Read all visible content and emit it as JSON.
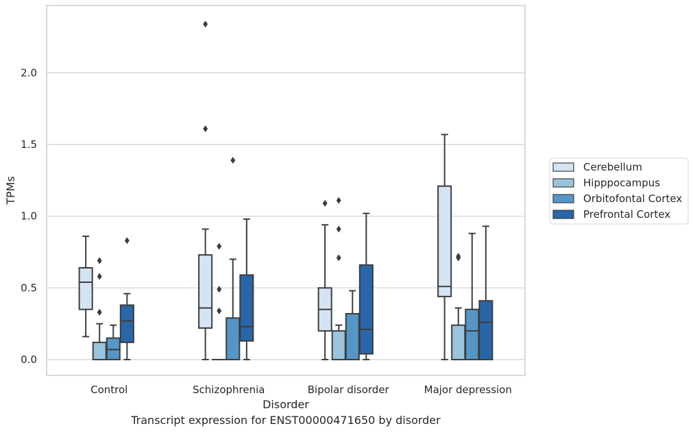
{
  "caption": "Transcript expression for ENST00000471650 by disorder",
  "chart_data": {
    "type": "box",
    "title": "",
    "xlabel": "Disorder",
    "ylabel": "TPMs",
    "ylim": [
      -0.11,
      2.47
    ],
    "yticks": [
      "0.0",
      "0.5",
      "1.0",
      "1.5",
      "2.0"
    ],
    "grid": "horizontal",
    "legend_position": "right",
    "categories": [
      "Control",
      "Schizophrenia",
      "Bipolar disorder",
      "Major depression"
    ],
    "series": [
      {
        "name": "Cerebellum",
        "color": "#d4e4f3",
        "boxes": [
          {
            "q1": 0.35,
            "median": 0.54,
            "q3": 0.64,
            "whislo": 0.16,
            "whishi": 0.86,
            "fliers": []
          },
          {
            "q1": 0.22,
            "median": 0.36,
            "q3": 0.73,
            "whislo": 0.0,
            "whishi": 0.91,
            "fliers": [
              1.61,
              2.34
            ]
          },
          {
            "q1": 0.2,
            "median": 0.35,
            "q3": 0.5,
            "whislo": 0.0,
            "whishi": 0.94,
            "fliers": [
              1.09
            ]
          },
          {
            "q1": 0.44,
            "median": 0.51,
            "q3": 1.21,
            "whislo": 0.0,
            "whishi": 1.57,
            "fliers": []
          }
        ]
      },
      {
        "name": "Hipppocampus",
        "color": "#9ac4de",
        "boxes": [
          {
            "q1": 0.0,
            "median": 0.0,
            "q3": 0.12,
            "whislo": 0.0,
            "whishi": 0.25,
            "fliers": [
              0.33,
              0.58,
              0.69
            ]
          },
          {
            "q1": 0.0,
            "median": 0.0,
            "q3": 0.0,
            "whislo": 0.0,
            "whishi": 0.0,
            "fliers": [
              0.34,
              0.49,
              0.79
            ]
          },
          {
            "q1": 0.0,
            "median": 0.0,
            "q3": 0.2,
            "whislo": 0.0,
            "whishi": 0.24,
            "fliers": [
              0.71,
              0.91,
              1.11
            ]
          },
          {
            "q1": 0.0,
            "median": 0.0,
            "q3": 0.24,
            "whislo": 0.0,
            "whishi": 0.36,
            "fliers": [
              0.71,
              0.72
            ]
          }
        ]
      },
      {
        "name": "Orbitofontal Cortex",
        "color": "#5596c6",
        "boxes": [
          {
            "q1": 0.0,
            "median": 0.07,
            "q3": 0.15,
            "whislo": 0.0,
            "whishi": 0.24,
            "fliers": []
          },
          {
            "q1": 0.0,
            "median": 0.0,
            "q3": 0.29,
            "whislo": 0.0,
            "whishi": 0.7,
            "fliers": [
              1.39
            ]
          },
          {
            "q1": 0.0,
            "median": 0.0,
            "q3": 0.32,
            "whislo": 0.0,
            "whishi": 0.48,
            "fliers": []
          },
          {
            "q1": 0.0,
            "median": 0.2,
            "q3": 0.35,
            "whislo": 0.0,
            "whishi": 0.88,
            "fliers": []
          }
        ]
      },
      {
        "name": "Prefrontal Cortex",
        "color": "#2866a8",
        "boxes": [
          {
            "q1": 0.12,
            "median": 0.27,
            "q3": 0.38,
            "whislo": 0.0,
            "whishi": 0.46,
            "fliers": [
              0.83
            ]
          },
          {
            "q1": 0.13,
            "median": 0.23,
            "q3": 0.59,
            "whislo": 0.0,
            "whishi": 0.98,
            "fliers": []
          },
          {
            "q1": 0.04,
            "median": 0.21,
            "q3": 0.66,
            "whislo": 0.0,
            "whishi": 1.02,
            "fliers": []
          },
          {
            "q1": 0.0,
            "median": 0.26,
            "q3": 0.41,
            "whislo": 0.0,
            "whishi": 0.93,
            "fliers": []
          }
        ]
      }
    ]
  }
}
